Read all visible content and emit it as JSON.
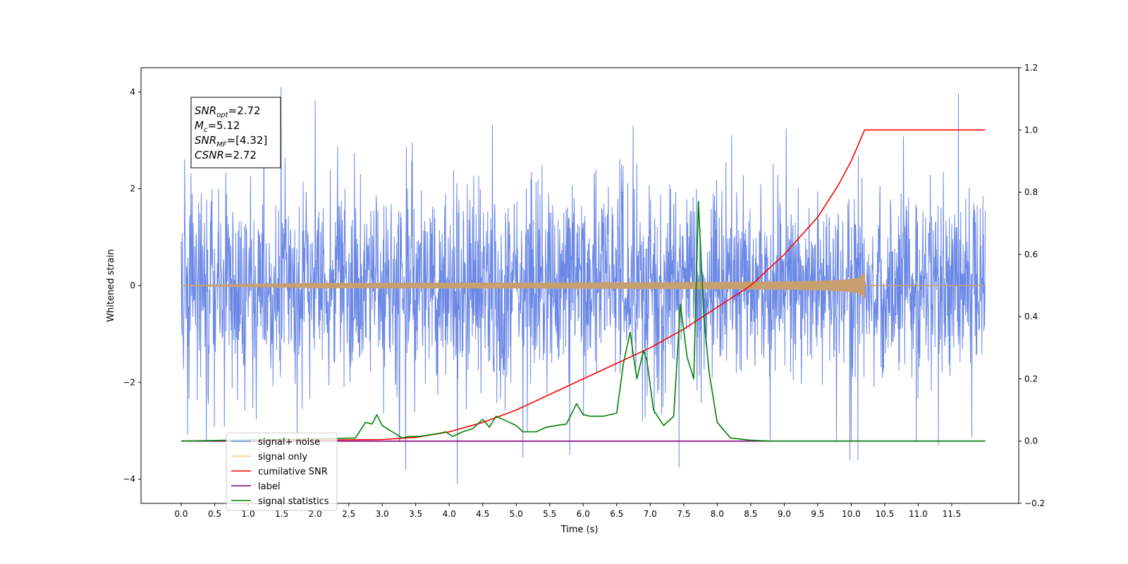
{
  "chart_data": {
    "type": "line",
    "title": "",
    "xlabel": "Time (s)",
    "ylabel_left": "Whitened strain",
    "ylabel_right": "",
    "xlim": [
      -0.6,
      12.5
    ],
    "ylim_left": [
      -4.5,
      4.5
    ],
    "ylim_right": [
      -0.2,
      1.2
    ],
    "x_ticks": [
      0.0,
      0.5,
      1.0,
      1.5,
      2.0,
      2.5,
      3.0,
      3.5,
      4.0,
      4.5,
      5.0,
      5.5,
      6.0,
      6.5,
      7.0,
      7.5,
      8.0,
      8.5,
      9.0,
      9.5,
      10.0,
      10.5,
      11.0,
      11.5
    ],
    "x_tick_labels": [
      "0.0",
      "0.5",
      "1.0",
      "1.5",
      "2.0",
      "2.5",
      "3.0",
      "3.5",
      "4.0",
      "4.5",
      "5.0",
      "5.5",
      "6.0",
      "6.5",
      "7.0",
      "7.5",
      "8.0",
      "8.5",
      "9.0",
      "9.5",
      "10.0",
      "10.5",
      "11.0",
      "11.5"
    ],
    "y_ticks_left": [
      -4,
      -2,
      0,
      2,
      4
    ],
    "y_tick_labels_left": [
      "−4",
      "−2",
      "0",
      "2",
      "4"
    ],
    "y_ticks_right": [
      -0.2,
      0.0,
      0.2,
      0.4,
      0.6,
      0.8,
      1.0,
      1.2
    ],
    "y_tick_labels_right": [
      "−0.2",
      "0.0",
      "0.2",
      "0.4",
      "0.6",
      "0.8",
      "1.0",
      "1.2"
    ],
    "grid": false,
    "legend_placement": "lower-left",
    "legend": [
      {
        "label": "signal+ noise",
        "color": "#6b88e6"
      },
      {
        "label": "signal only",
        "color": "#ffc46a"
      },
      {
        "label": "cumilative SNR",
        "color": "#ff0000"
      },
      {
        "label": "label",
        "color": "#800080"
      },
      {
        "label": "signal statistics",
        "color": "#008000"
      }
    ],
    "annotation": {
      "lines": [
        {
          "main": "SNR",
          "sub": "opt",
          "rest": "=2.72"
        },
        {
          "main": "M",
          "sub": "c",
          "rest": "=5.12"
        },
        {
          "main": "SNR",
          "sub": "MF",
          "rest": "=[4.32]"
        },
        {
          "main": "CSNR",
          "sub": "",
          "rest": "=2.72"
        }
      ]
    },
    "series": [
      {
        "name": "signal+ noise",
        "axis": "left",
        "color": "#6b88e6",
        "x_range": [
          0.0,
          12.0
        ],
        "typical_amplitude": 1.25,
        "peaks": [
          {
            "x": 1.49,
            "y": 4.1
          },
          {
            "x": 11.6,
            "y": 3.95
          },
          {
            "x": 2.0,
            "y": 3.82
          },
          {
            "x": 0.05,
            "y": 2.6
          },
          {
            "x": 3.35,
            "y": -3.8
          },
          {
            "x": 4.12,
            "y": -4.1
          },
          {
            "x": 5.1,
            "y": -3.55
          },
          {
            "x": 9.98,
            "y": -3.6
          },
          {
            "x": 10.1,
            "y": -3.6
          },
          {
            "x": 7.43,
            "y": -3.75
          },
          {
            "x": 5.8,
            "y": -3.5
          },
          {
            "x": 11.3,
            "y": -3.3
          }
        ]
      },
      {
        "name": "signal only",
        "axis": "left",
        "color": "#c8a070",
        "x_range": [
          0.0,
          12.0
        ],
        "chirp_end": 10.2,
        "max_amplitude": 0.3
      },
      {
        "name": "cumilative SNR",
        "axis": "right",
        "color": "#ff0000",
        "x": [
          0.0,
          3.0,
          3.5,
          4.0,
          4.5,
          5.0,
          5.5,
          6.0,
          6.5,
          7.0,
          7.5,
          8.0,
          8.5,
          9.0,
          9.5,
          9.8,
          10.0,
          10.1,
          10.2,
          12.0
        ],
        "y": [
          0.0,
          0.005,
          0.012,
          0.03,
          0.06,
          0.1,
          0.15,
          0.2,
          0.25,
          0.3,
          0.36,
          0.43,
          0.5,
          0.6,
          0.72,
          0.82,
          0.9,
          0.95,
          1.0,
          1.0
        ]
      },
      {
        "name": "label",
        "axis": "right",
        "color": "#800080",
        "x": [
          0.0,
          12.0
        ],
        "y": [
          0.0,
          0.0
        ]
      },
      {
        "name": "signal statistics",
        "axis": "right",
        "color": "#008000",
        "x": [
          0.0,
          2.6,
          2.75,
          2.85,
          2.92,
          3.0,
          3.15,
          3.3,
          3.4,
          3.55,
          3.7,
          3.85,
          3.95,
          4.05,
          4.2,
          4.35,
          4.5,
          4.6,
          4.7,
          4.8,
          4.9,
          5.0,
          5.1,
          5.3,
          5.45,
          5.6,
          5.75,
          5.9,
          6.0,
          6.1,
          6.3,
          6.5,
          6.6,
          6.7,
          6.8,
          6.9,
          6.95,
          7.05,
          7.2,
          7.35,
          7.45,
          7.55,
          7.65,
          7.72,
          7.8,
          7.88,
          8.0,
          8.2,
          8.5,
          8.8,
          12.0
        ],
        "y": [
          0.0,
          0.01,
          0.06,
          0.055,
          0.085,
          0.05,
          0.03,
          0.01,
          0.015,
          0.015,
          0.02,
          0.025,
          0.03,
          0.015,
          0.03,
          0.04,
          0.07,
          0.045,
          0.08,
          0.07,
          0.06,
          0.05,
          0.03,
          0.03,
          0.045,
          0.05,
          0.055,
          0.12,
          0.085,
          0.08,
          0.08,
          0.09,
          0.25,
          0.35,
          0.2,
          0.29,
          0.26,
          0.1,
          0.05,
          0.08,
          0.44,
          0.27,
          0.2,
          0.77,
          0.4,
          0.22,
          0.06,
          0.01,
          0.003,
          0.0,
          0.0
        ]
      }
    ]
  }
}
